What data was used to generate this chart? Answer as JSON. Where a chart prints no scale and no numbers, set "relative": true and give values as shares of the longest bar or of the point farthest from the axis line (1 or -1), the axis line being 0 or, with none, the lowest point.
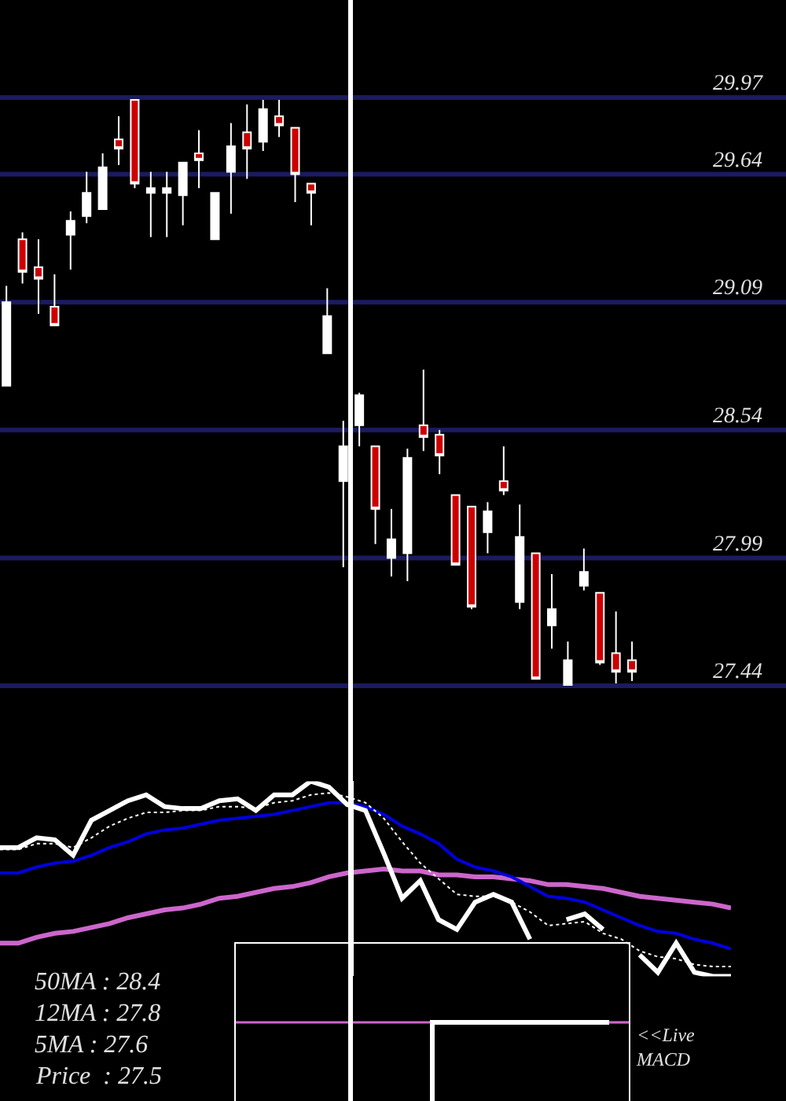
{
  "chart_data": [
    {
      "type": "candlestick",
      "categories": [
        null,
        null,
        null,
        null,
        null,
        null,
        null,
        null,
        null,
        null,
        null,
        null,
        null,
        null,
        null,
        null,
        null,
        null,
        null,
        null,
        null,
        null,
        null,
        null,
        null,
        null,
        null,
        null,
        null,
        null,
        null,
        null,
        null,
        null,
        null,
        null,
        null,
        null,
        null,
        null
      ],
      "ohlc": [
        [
          28.73,
          29.16,
          28.73,
          29.09
        ],
        [
          29.36,
          29.39,
          29.17,
          29.22
        ],
        [
          29.24,
          29.36,
          29.04,
          29.19
        ],
        [
          29.07,
          29.21,
          28.99,
          28.99
        ],
        [
          29.38,
          29.48,
          29.23,
          29.44
        ],
        [
          29.46,
          29.65,
          29.43,
          29.56
        ],
        [
          29.49,
          29.73,
          29.49,
          29.67
        ],
        [
          29.79,
          29.89,
          29.68,
          29.75
        ],
        [
          29.96,
          29.96,
          29.58,
          29.6
        ],
        [
          29.56,
          29.65,
          29.37,
          29.58
        ],
        [
          29.56,
          29.65,
          29.37,
          29.58
        ],
        [
          29.55,
          29.69,
          29.42,
          29.69
        ],
        [
          29.73,
          29.83,
          29.58,
          29.7
        ],
        [
          29.36,
          29.56,
          29.36,
          29.56
        ],
        [
          29.65,
          29.86,
          29.47,
          29.76
        ],
        [
          29.82,
          29.94,
          29.62,
          29.75
        ],
        [
          29.78,
          29.96,
          29.74,
          29.92
        ],
        [
          29.89,
          29.96,
          29.8,
          29.85
        ],
        [
          29.84,
          29.84,
          29.52,
          29.64
        ],
        [
          29.6,
          29.6,
          29.42,
          29.56
        ],
        [
          28.87,
          29.15,
          28.87,
          29.03
        ],
        [
          28.32,
          28.58,
          27.95,
          28.47
        ],
        [
          28.56,
          28.7,
          28.47,
          28.69
        ],
        [
          28.47,
          28.47,
          28.05,
          28.2
        ],
        [
          27.99,
          28.2,
          27.91,
          28.07
        ],
        [
          28.01,
          28.46,
          27.89,
          28.42
        ],
        [
          28.56,
          28.8,
          28.45,
          28.51
        ],
        [
          28.52,
          28.54,
          28.35,
          28.43
        ],
        [
          28.26,
          28.26,
          27.96,
          27.96
        ],
        [
          28.21,
          28.21,
          27.77,
          27.78
        ],
        [
          28.1,
          28.23,
          28.01,
          28.19
        ],
        [
          28.32,
          28.47,
          28.26,
          28.28
        ],
        [
          27.8,
          28.22,
          27.77,
          28.08
        ],
        [
          28.01,
          28.01,
          27.47,
          27.47
        ],
        [
          27.7,
          27.92,
          27.6,
          27.77
        ],
        [
          27.44,
          27.63,
          27.44,
          27.55
        ],
        [
          27.87,
          28.03,
          27.85,
          27.93
        ],
        [
          27.84,
          27.84,
          27.53,
          27.54
        ],
        [
          27.58,
          27.76,
          27.45,
          27.5
        ],
        [
          27.55,
          27.63,
          27.46,
          27.5
        ]
      ],
      "color": "#ffffff",
      "colors": [
        "#ffffff",
        "#cc0000",
        "#cc0000",
        "#cc0000",
        "#ffffff",
        "#ffffff",
        "#ffffff",
        "#cc0000",
        "#cc0000",
        "#ffffff",
        "#ffffff",
        "#ffffff",
        "#cc0000",
        "#ffffff",
        "#ffffff",
        "#cc0000",
        "#ffffff",
        "#cc0000",
        "#cc0000",
        "#cc0000",
        "#ffffff",
        "#ffffff",
        "#ffffff",
        "#cc0000",
        "#ffffff",
        "#ffffff",
        "#cc0000",
        "#cc0000",
        "#cc0000",
        "#cc0000",
        "#ffffff",
        "#cc0000",
        "#ffffff",
        "#cc0000",
        "#ffffff",
        "#ffffff",
        "#ffffff",
        "#cc0000",
        "#cc0000",
        "#cc0000"
      ],
      "ylim": [
        27.44,
        29.97
      ],
      "yticks": [
        29.97,
        29.64,
        29.09,
        28.54,
        27.99,
        27.44
      ],
      "grid": "y",
      "tick_labels": "y"
    },
    {
      "type": "line",
      "relative": true,
      "tick_labels": false,
      "categories": [
        null,
        null,
        null,
        null,
        null,
        null,
        null,
        null,
        null,
        null,
        null,
        null,
        null,
        null,
        null,
        null,
        null,
        null,
        null,
        null,
        null,
        null,
        null,
        null,
        null,
        null,
        null,
        null,
        null,
        null,
        null,
        null,
        null,
        null,
        null,
        null,
        null,
        null,
        null,
        null,
        null
      ],
      "series": [
        {
          "color": "#cc66cc",
          "values": [
            0.17,
            0.17,
            0.2,
            0.22,
            0.23,
            0.25,
            0.27,
            0.3,
            0.32,
            0.34,
            0.35,
            0.37,
            0.4,
            0.41,
            0.43,
            0.45,
            0.46,
            0.48,
            0.51,
            0.53,
            0.54,
            0.55,
            0.54,
            0.54,
            0.52,
            0.52,
            0.51,
            0.51,
            0.5,
            0.49,
            0.47,
            0.47,
            0.46,
            0.45,
            0.43,
            0.41,
            0.4,
            0.39,
            0.38,
            0.37,
            0.35
          ]
        },
        {
          "color": "#0000dd",
          "values": [
            0.53,
            0.53,
            0.56,
            0.58,
            0.59,
            0.62,
            0.66,
            0.69,
            0.73,
            0.75,
            0.76,
            0.78,
            0.8,
            0.81,
            0.82,
            0.83,
            0.85,
            0.87,
            0.89,
            0.89,
            0.87,
            0.83,
            0.77,
            0.73,
            0.68,
            0.6,
            0.56,
            0.54,
            0.51,
            0.46,
            0.41,
            0.4,
            0.38,
            0.34,
            0.3,
            0.26,
            0.23,
            0.22,
            0.19,
            0.17,
            0.14
          ]
        },
        {
          "color": "#ffffff",
          "line_style": "dotted",
          "values": [
            0.65,
            0.65,
            0.68,
            0.68,
            0.66,
            0.71,
            0.77,
            0.81,
            0.84,
            0.84,
            0.85,
            0.85,
            0.87,
            0.87,
            0.86,
            0.89,
            0.9,
            0.93,
            0.94,
            0.92,
            0.89,
            0.81,
            0.69,
            0.58,
            0.5,
            0.42,
            0.41,
            0.41,
            0.38,
            0.33,
            0.26,
            0.27,
            0.28,
            0.22,
            0.19,
            0.13,
            0.1,
            0.09,
            0.06,
            0.05,
            0.05
          ]
        },
        {
          "color": "#ffffff",
          "values": [
            0.66,
            0.66,
            0.71,
            0.7,
            0.62,
            0.8,
            0.85,
            0.9,
            0.93,
            0.87,
            0.86,
            0.86,
            0.9,
            0.91,
            0.85,
            0.93,
            0.93,
            1.0,
            0.97,
            0.88,
            0.85,
            0.63,
            0.4,
            0.49,
            0.29,
            0.24,
            0.38,
            0.42,
            0.38,
            0.19,
            null,
            0.29,
            0.32,
            0.24,
            null,
            0.11,
            0.02,
            0.17,
            0.02,
            0.0,
            0.0
          ]
        }
      ],
      "annotations": [
        "50MA : 28.4",
        "12MA : 27.8",
        "5MA : 27.6",
        "Price  : 27.5"
      ]
    },
    {
      "type": "line",
      "relative": true,
      "tick_labels": false,
      "categories": [
        null,
        null,
        null,
        null,
        null,
        null,
        null,
        null,
        null,
        null,
        null,
        null,
        null,
        null,
        null,
        null,
        null,
        null,
        null,
        null,
        null
      ],
      "series": [
        {
          "color": "#cc66cc",
          "values": [
            1,
            1,
            1,
            1,
            1,
            1,
            1,
            1,
            1,
            1,
            1,
            null,
            null,
            null,
            null,
            null,
            null,
            null,
            null,
            1,
            1
          ]
        },
        {
          "type": "step",
          "color": "#ffffff",
          "values": [
            null,
            null,
            null,
            null,
            null,
            null,
            null,
            null,
            null,
            null,
            0,
            1,
            1,
            1,
            1,
            1,
            1,
            1,
            1,
            1,
            null
          ]
        }
      ],
      "annotations": [
        "<<Live\nMACD"
      ]
    }
  ]
}
